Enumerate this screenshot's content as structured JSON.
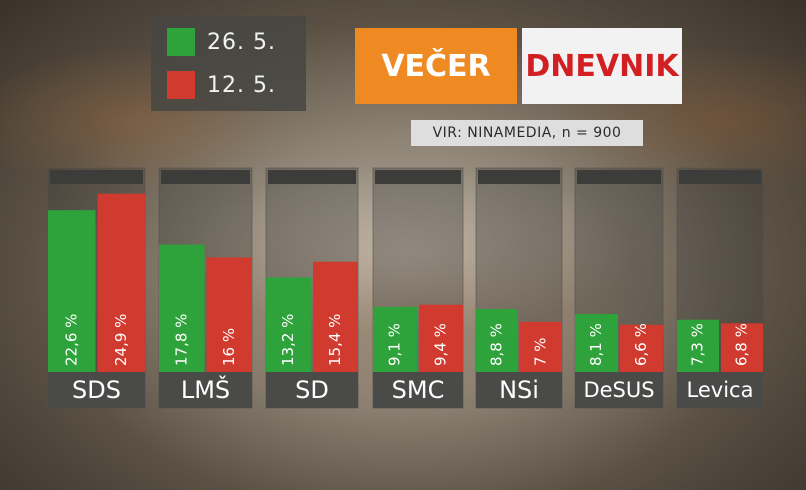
{
  "legend": {
    "items": [
      {
        "label": "26. 5.",
        "color": "#2fa33b"
      },
      {
        "label": "12. 5.",
        "color": "#d13a2e"
      }
    ]
  },
  "brands": {
    "vecer": "VEČER",
    "dnevnik": "DNEVNIK"
  },
  "source": "VIR: NINAMEDIA, n = 900",
  "chart_data": {
    "type": "bar",
    "title": "",
    "xlabel": "",
    "ylabel": "",
    "categories": [
      "SDS",
      "LMŠ",
      "SD",
      "SMC",
      "NSi",
      "DeSUS",
      "Levica"
    ],
    "series": [
      {
        "name": "26. 5.",
        "color": "#2fa33b",
        "values": [
          22.6,
          17.8,
          13.2,
          9.1,
          8.8,
          8.1,
          7.3
        ],
        "labels": [
          "22,6 %",
          "17,8 %",
          "13,2 %",
          "9,1 %",
          "8,8 %",
          "8,1 %",
          "7,3 %"
        ]
      },
      {
        "name": "12. 5.",
        "color": "#d13a2e",
        "values": [
          24.9,
          16,
          15.4,
          9.4,
          7,
          6.6,
          6.8
        ],
        "labels": [
          "24,9 %",
          "16 %",
          "15,4 %",
          "9,4 %",
          "7 %",
          "6,6 %",
          "6,8 %"
        ]
      }
    ],
    "ylim": [
      0,
      27
    ],
    "grid": false,
    "legend": "top-left"
  }
}
